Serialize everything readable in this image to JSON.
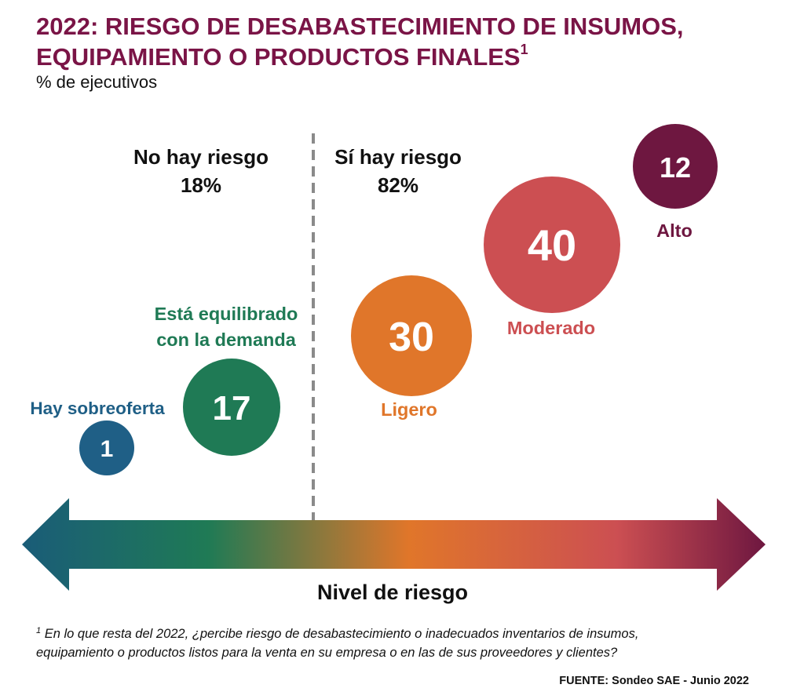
{
  "title": {
    "line1": "2022: RIESGO DE DESABASTECIMIENTO DE INSUMOS,",
    "line2": "EQUIPAMIENTO O PRODUCTOS FINALES",
    "sup": "1"
  },
  "subtitle": "% de ejecutivos",
  "chart_data": {
    "type": "bubble",
    "groups": [
      {
        "label": "No hay riesgo",
        "value": "18%"
      },
      {
        "label": "Sí hay riesgo",
        "value": "82%"
      }
    ],
    "bubbles": [
      {
        "key": "sobreoferta",
        "label": "Hay sobreoferta",
        "value": 1,
        "color": "#1f5f86"
      },
      {
        "key": "equilibrado",
        "label_lines": [
          "Está equilibrado",
          "con la demanda"
        ],
        "value": 17,
        "color": "#1f7a55"
      },
      {
        "key": "ligero",
        "label": "Ligero",
        "value": 30,
        "color": "#e0762a"
      },
      {
        "key": "moderado",
        "label": "Moderado",
        "value": 40,
        "color": "#cc4f52"
      },
      {
        "key": "alto",
        "label": "Alto",
        "value": 12,
        "color": "#6e1740"
      }
    ],
    "axis_label": "Nivel de riesgo",
    "gradient_colors": [
      "#1a5c78",
      "#1f7a55",
      "#e0762a",
      "#cc4f52",
      "#6e1740"
    ]
  },
  "footnote": {
    "sup": "1",
    "line1": "En lo que resta del 2022, ¿percibe riesgo de desabastecimiento o inadecuados inventarios de insumos,",
    "line2": "equipamiento o productos listos para la venta en su empresa o en las de sus proveedores y clientes?"
  },
  "source": "FUENTE: Sondeo SAE - Junio 2022"
}
